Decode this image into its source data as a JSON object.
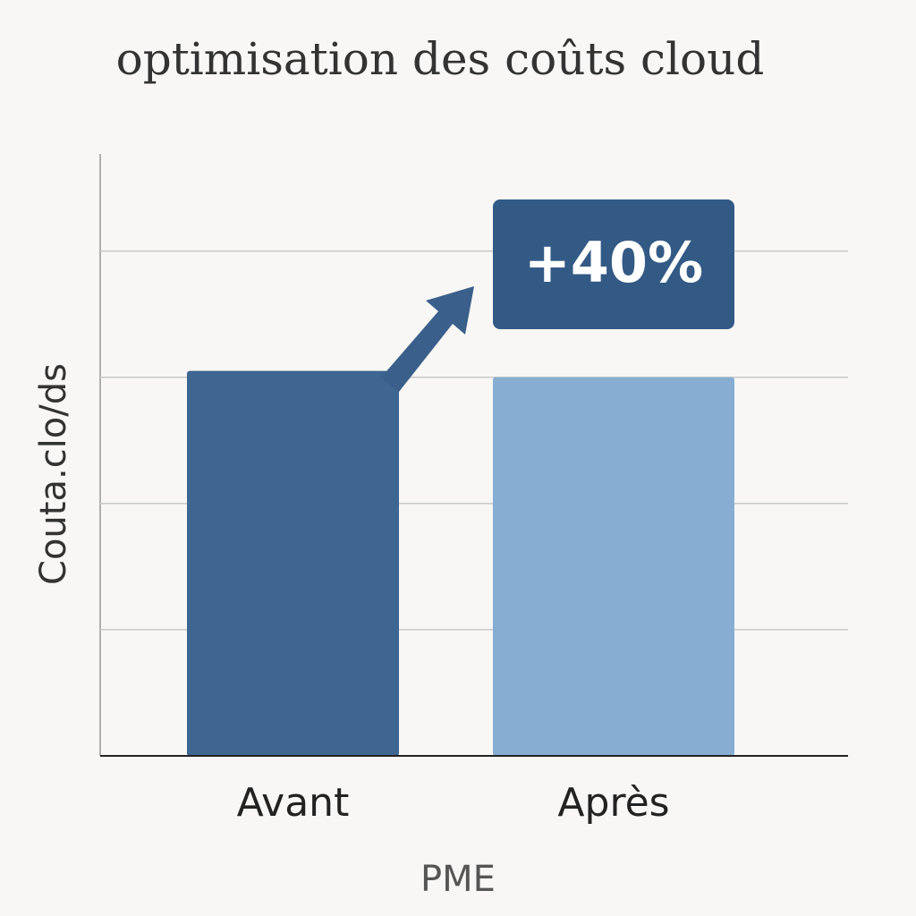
{
  "chart_data": {
    "type": "bar",
    "title": "optimisation des coûts cloud",
    "categories": [
      "Avant",
      "Après"
    ],
    "values": [
      3.05,
      3.0
    ],
    "colors": [
      "#3f6591",
      "#87aed2"
    ],
    "ylabel": "Couta.clo/ds",
    "xlabel": "PME",
    "annotation": "+40%",
    "ylim": [
      0,
      4.77
    ],
    "yticks": [
      1,
      2,
      3,
      4
    ],
    "grid": true
  }
}
